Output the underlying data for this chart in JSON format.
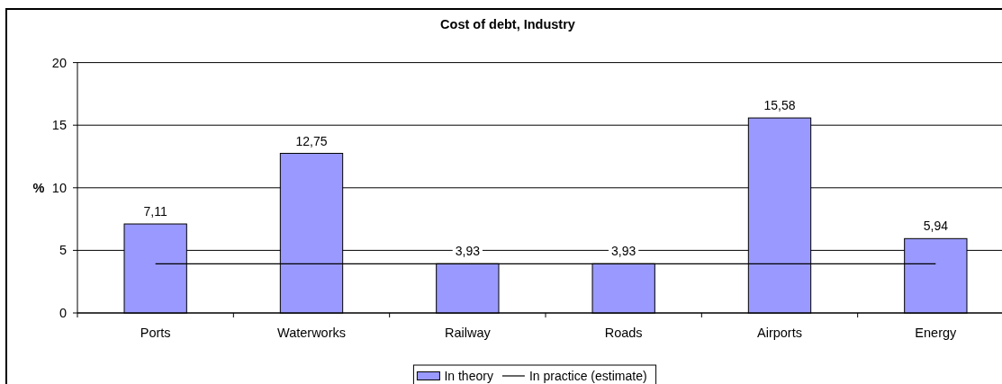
{
  "chart_data": {
    "type": "bar",
    "title": "Cost of debt, Industry",
    "ylabel": "%",
    "categories": [
      "Ports",
      "Waterworks",
      "Railway",
      "Roads",
      "Airports",
      "Energy"
    ],
    "series": [
      {
        "name": "In theory",
        "color": "#9999ff",
        "values": [
          7.11,
          12.75,
          3.93,
          3.93,
          15.58,
          5.94
        ],
        "value_labels": [
          "7,11",
          "12,75",
          "3,93",
          "3,93",
          "15,58",
          "5,94"
        ]
      },
      {
        "name": "In practice (estimate)",
        "type": "line",
        "color": "#000000",
        "values": [
          3.93,
          3.93,
          3.93,
          3.93,
          3.93,
          3.93
        ]
      }
    ],
    "ylim": [
      0,
      20
    ],
    "yticks": [
      0,
      5,
      10,
      15,
      20
    ],
    "grid": "y",
    "legend": "bottom"
  }
}
